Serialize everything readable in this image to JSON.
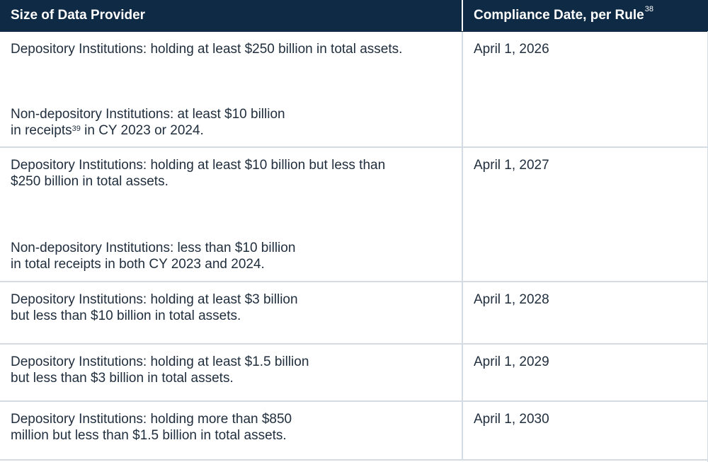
{
  "header": {
    "col1": "Size of Data Provider",
    "col2": "Compliance Date, per Rule",
    "col2_footnote": "38"
  },
  "rows": [
    {
      "provider_a": [
        "Depository Institutions: holding at least $250 billion in total assets."
      ],
      "provider_b_line1_pre": "Non-depository Institutions: at least $10 billion",
      "provider_b_line2_pre": "in receipts",
      "provider_b_footnote": "39",
      "provider_b_line2_post": " in CY 2023 or 2024.",
      "date": "April 1, 2026"
    },
    {
      "provider_a": [
        "Depository Institutions: holding at least $10 billion but less than",
        "$250 billion in total assets."
      ],
      "provider_b": [
        "Non-depository Institutions: less than $10 billion",
        "in total receipts in both CY 2023 and 2024."
      ],
      "date": "April 1, 2027"
    },
    {
      "provider_a": [
        "Depository Institutions: holding at least $3 billion",
        "but less than $10 billion in total assets."
      ],
      "date": "April 1, 2028"
    },
    {
      "provider_a": [
        "Depository Institutions: holding at least $1.5 billion",
        "but less than $3 billion in total assets."
      ],
      "date": "April 1, 2029"
    },
    {
      "provider_a": [
        "Depository Institutions: holding more than $850",
        "million but less than $1.5 billion in total assets."
      ],
      "date": "April 1, 2030"
    }
  ],
  "colors": {
    "header_bg": "#0f2a44",
    "header_text": "#ffffff",
    "body_text": "#1f2d3d",
    "grid": "#d4dbe3"
  }
}
